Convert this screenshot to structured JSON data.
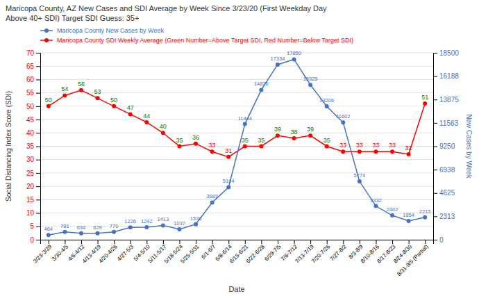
{
  "chart_data": {
    "type": "line",
    "title": "Maricopa County, AZ New Cases and SDI Average by Week Since 3/23/20 (First Weekday Day\nAbove 40+ SDI) Target SDI Guess: 35+",
    "xlabel": "Date",
    "ylabel": "Social Distancing Index Score (SDI)",
    "y2label": "New Cases by Week",
    "categories": [
      "3/23-3/29",
      "3/30-4/5",
      "4/6-4/12",
      "4/13-4/19",
      "4/20-4/26",
      "4/27-5/3",
      "5/4-5/10",
      "5/11-5/17",
      "5/18-5/24",
      "5/25-5/31",
      "6/1-6/7",
      "6/8-6/14",
      "6/15-6/21",
      "6/22-6/28",
      "6/29-7/5",
      "7/6-7/12",
      "7/13-7/19",
      "7/20-7/26",
      "7/27-8/2",
      "8/3-8/9",
      "8/10-8/16",
      "8/17-8/23",
      "8/24-8/30",
      "8/31-9/5 (Partial)"
    ],
    "series": [
      {
        "name": "Maricopa County New Cases by Week",
        "color": "#4472c4",
        "axis": "y2",
        "marker": "circle",
        "values": [
          464,
          781,
          634,
          629,
          770,
          1226,
          1242,
          1413,
          1037,
          1538,
          3683,
          5194,
          11444,
          14826,
          17334,
          17850,
          15325,
          13206,
          11602,
          5774,
          3332,
          2402,
          1854,
          2215
        ]
      },
      {
        "name": "Maricopa County SDI Weekly Average (Green Number=Above Target SDI, Red Number=Below Target SDI)",
        "color": "#ff0000",
        "marker": "circle",
        "values": [
          50,
          54,
          56,
          53,
          50,
          47,
          44,
          40,
          35,
          36,
          33,
          31,
          35,
          35,
          39,
          38,
          39,
          35,
          33,
          33,
          33,
          33,
          32,
          51
        ],
        "colors": [
          "green",
          "green",
          "green",
          "green",
          "green",
          "green",
          "green",
          "green",
          "green",
          "green",
          "red",
          "red",
          "green",
          "green",
          "green",
          "green",
          "green",
          "green",
          "red",
          "red",
          "red",
          "red",
          "red",
          "green"
        ]
      }
    ],
    "ylim": [
      0,
      70
    ],
    "yticks": [
      0,
      5,
      10,
      15,
      20,
      25,
      30,
      35,
      40,
      45,
      50,
      55,
      60,
      65,
      70
    ],
    "y2lim": [
      0,
      18500
    ],
    "y2ticks": [
      0,
      2313,
      4625,
      6938,
      9250,
      11563,
      13875,
      16188,
      18500
    ],
    "grid": true,
    "data_labels": true,
    "legend": "top-left"
  }
}
